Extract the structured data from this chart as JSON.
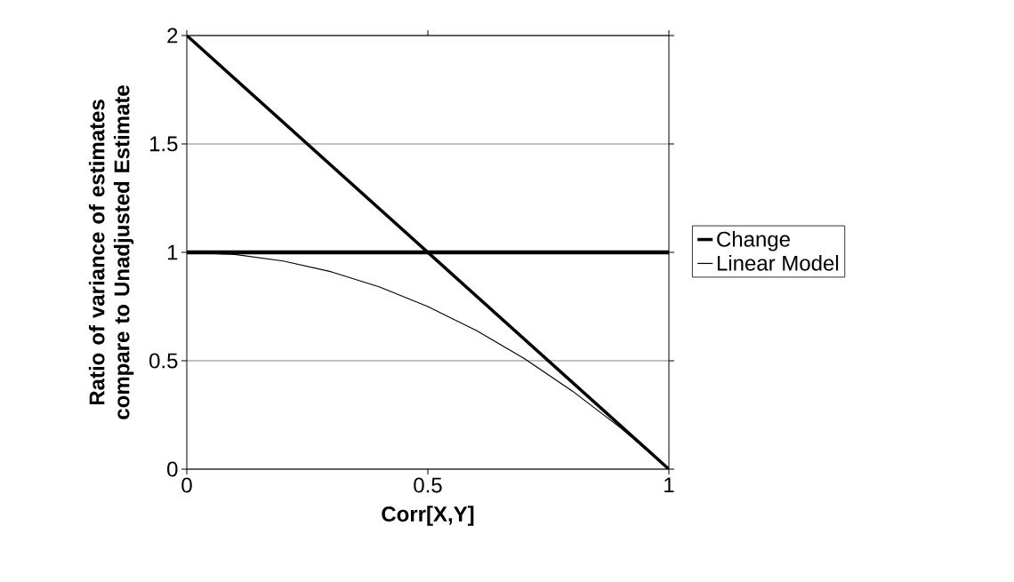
{
  "chart_data": {
    "type": "line",
    "xlabel": "Corr[X,Y]",
    "ylabel": "Ratio of variance of estimates compare to Unadjusted Estimate",
    "xlim": [
      0,
      1
    ],
    "ylim": [
      0,
      2
    ],
    "xticks": [
      0,
      0.5,
      1
    ],
    "yticks": [
      0,
      0.5,
      1,
      1.5,
      2
    ],
    "grid": "y",
    "legend": "right",
    "marker": "none",
    "x": [
      0,
      0.1,
      0.2,
      0.3,
      0.4,
      0.5,
      0.6,
      0.7,
      0.8,
      0.9,
      1
    ],
    "series": [
      {
        "name": "Change",
        "color": "#000000",
        "x": [
          0,
          1
        ],
        "values": [
          2,
          0
        ]
      },
      {
        "name": "Linear Model",
        "color": "#000000",
        "values": [
          1,
          0.99,
          0.96,
          0.91,
          0.84,
          0.75,
          0.64,
          0.51,
          0.36,
          0.19,
          0
        ]
      }
    ],
    "ref_lines": [
      {
        "axis": "y",
        "value": 1,
        "color": "#000000"
      }
    ]
  }
}
